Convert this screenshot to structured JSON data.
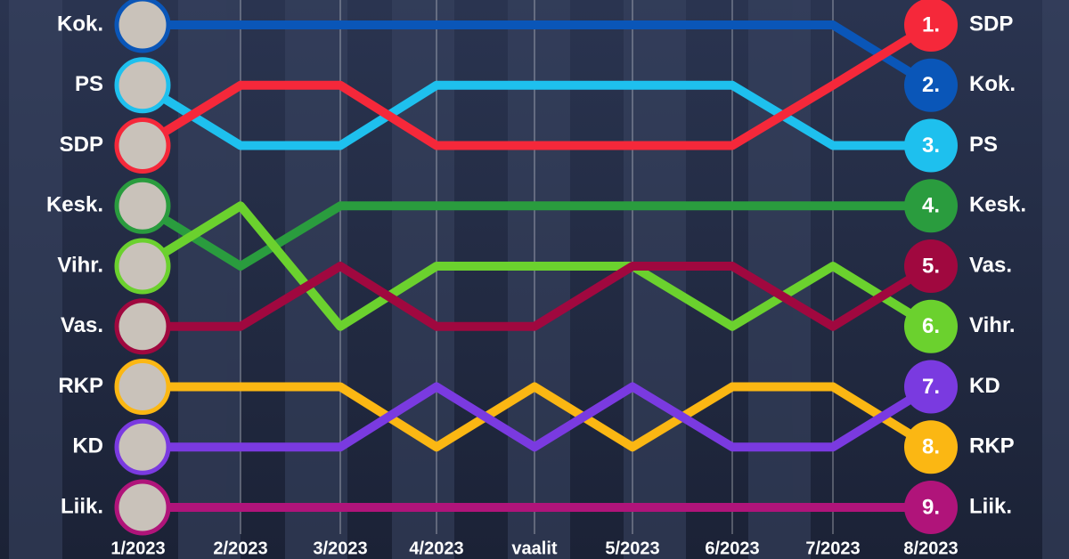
{
  "chart_data": {
    "type": "bump",
    "categories": [
      "1/2023",
      "2/2023",
      "3/2023",
      "4/2023",
      "vaalit",
      "5/2023",
      "6/2023",
      "7/2023",
      "8/2023"
    ],
    "ylim": [
      9,
      1
    ],
    "yticks": [
      {
        "value": 1,
        "label": "1."
      },
      {
        "value": 2,
        "label": "2."
      },
      {
        "value": 3,
        "label": "3."
      },
      {
        "value": 4,
        "label": "4."
      },
      {
        "value": 5,
        "label": "5."
      },
      {
        "value": 6,
        "label": "6."
      },
      {
        "value": 7,
        "label": "7."
      },
      {
        "value": 8,
        "label": "8."
      },
      {
        "value": 9,
        "label": "9."
      }
    ],
    "series": [
      {
        "name": "Kok.",
        "color": "#0a56b8",
        "values": [
          1,
          1,
          1,
          1,
          1,
          1,
          1,
          1,
          2
        ]
      },
      {
        "name": "PS",
        "color": "#1ec0ee",
        "values": [
          2,
          3,
          3,
          2,
          2,
          2,
          2,
          3,
          3
        ]
      },
      {
        "name": "SDP",
        "color": "#f5283a",
        "values": [
          3,
          2,
          2,
          3,
          3,
          3,
          3,
          2,
          1
        ]
      },
      {
        "name": "Kesk.",
        "color": "#2a9c3e",
        "values": [
          4,
          5,
          4,
          4,
          4,
          4,
          4,
          4,
          4
        ]
      },
      {
        "name": "Vihr.",
        "color": "#6bd12e",
        "values": [
          5,
          4,
          6,
          5,
          5,
          5,
          6,
          5,
          6
        ]
      },
      {
        "name": "Vas.",
        "color": "#a0083f",
        "values": [
          6,
          6,
          5,
          6,
          6,
          5,
          5,
          6,
          5
        ]
      },
      {
        "name": "RKP",
        "color": "#fbb713",
        "values": [
          7,
          7,
          7,
          8,
          7,
          8,
          7,
          7,
          8
        ]
      },
      {
        "name": "KD",
        "color": "#7a3ae0",
        "values": [
          8,
          8,
          8,
          7,
          8,
          7,
          8,
          8,
          7
        ]
      },
      {
        "name": "Liik.",
        "color": "#b0147a",
        "values": [
          9,
          9,
          9,
          9,
          9,
          9,
          9,
          9,
          9
        ]
      }
    ]
  }
}
